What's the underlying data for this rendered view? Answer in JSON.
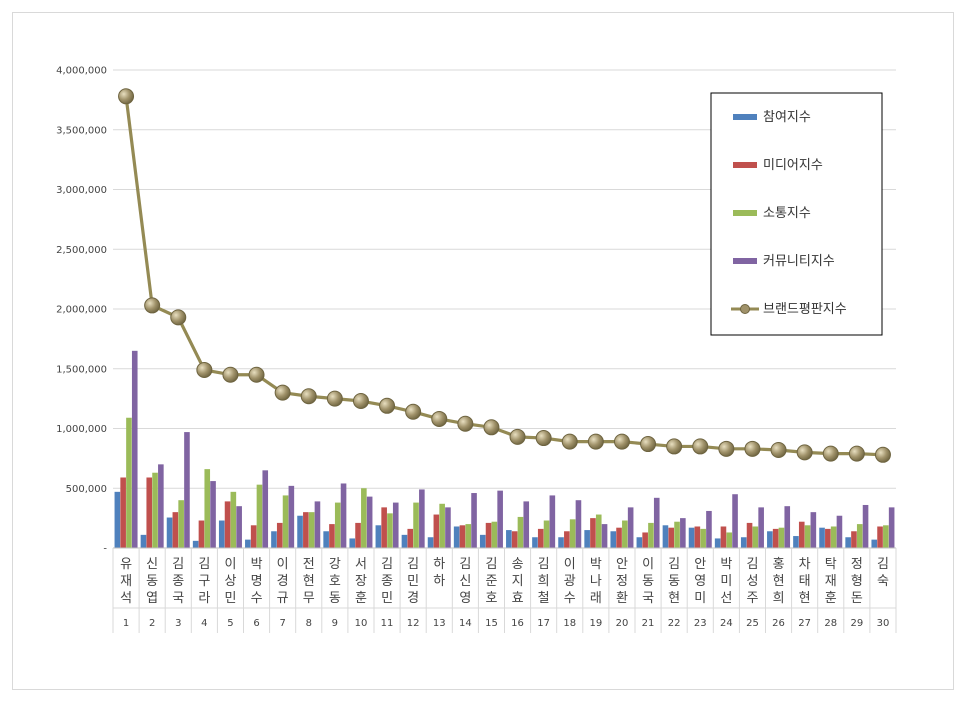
{
  "chart_data": {
    "type": "bar",
    "title": "",
    "xlabel": "",
    "ylabel": "",
    "ylim": [
      0,
      4000000
    ],
    "yticks": [
      0,
      500000,
      1000000,
      1500000,
      2000000,
      2500000,
      3000000,
      3500000,
      4000000
    ],
    "ytick_labels": [
      "-",
      "500,000",
      "1,000,000",
      "1,500,000",
      "2,000,000",
      "2,500,000",
      "3,000,000",
      "3,500,000",
      "4,000,000"
    ],
    "grid": true,
    "legend_position": "top-right",
    "categories": [
      "유재석",
      "신동엽",
      "김종국",
      "김구라",
      "이상민",
      "박명수",
      "이경규",
      "전현무",
      "강호동",
      "서장훈",
      "김종민",
      "김민경",
      "하하",
      "김신영",
      "김준호",
      "송지효",
      "김희철",
      "이광수",
      "박나래",
      "안정환",
      "이동국",
      "김동현",
      "안영미",
      "박미선",
      "김성주",
      "홍현희",
      "차태현",
      "탁재훈",
      "정형돈",
      "김숙"
    ],
    "ranks": [
      "1",
      "2",
      "3",
      "4",
      "5",
      "6",
      "7",
      "8",
      "9",
      "10",
      "11",
      "12",
      "13",
      "14",
      "15",
      "16",
      "17",
      "18",
      "19",
      "20",
      "21",
      "22",
      "23",
      "24",
      "25",
      "26",
      "27",
      "28",
      "29",
      "30"
    ],
    "series": [
      {
        "name": "참여지수",
        "kind": "bar",
        "color": "#4f81bd",
        "values": [
          470000,
          110000,
          255000,
          60000,
          230000,
          70000,
          140000,
          270000,
          140000,
          80000,
          190000,
          110000,
          90000,
          180000,
          110000,
          150000,
          90000,
          90000,
          150000,
          140000,
          90000,
          190000,
          170000,
          80000,
          90000,
          140000,
          100000,
          170000,
          90000,
          70000
        ]
      },
      {
        "name": "미디어지수",
        "kind": "bar",
        "color": "#c0504d",
        "values": [
          590000,
          590000,
          300000,
          230000,
          390000,
          190000,
          210000,
          300000,
          200000,
          210000,
          340000,
          160000,
          280000,
          190000,
          210000,
          140000,
          160000,
          140000,
          250000,
          170000,
          130000,
          170000,
          180000,
          180000,
          210000,
          160000,
          220000,
          160000,
          140000,
          180000
        ]
      },
      {
        "name": "소통지수",
        "kind": "bar",
        "color": "#9bbb59",
        "values": [
          1090000,
          630000,
          400000,
          660000,
          470000,
          530000,
          440000,
          300000,
          380000,
          500000,
          290000,
          380000,
          370000,
          200000,
          220000,
          260000,
          230000,
          240000,
          280000,
          230000,
          210000,
          220000,
          160000,
          130000,
          180000,
          170000,
          190000,
          180000,
          200000,
          190000
        ]
      },
      {
        "name": "커뮤니티지수",
        "kind": "bar",
        "color": "#8064a2",
        "values": [
          1650000,
          700000,
          970000,
          560000,
          350000,
          650000,
          520000,
          390000,
          540000,
          430000,
          380000,
          490000,
          340000,
          460000,
          480000,
          390000,
          440000,
          400000,
          200000,
          340000,
          420000,
          250000,
          310000,
          450000,
          340000,
          350000,
          300000,
          270000,
          360000,
          340000
        ]
      },
      {
        "name": "브랜드평판지수",
        "kind": "line",
        "color": "#948a54",
        "marker_color": "#a0926a",
        "values": [
          3780000,
          2030000,
          1930000,
          1490000,
          1450000,
          1450000,
          1300000,
          1270000,
          1250000,
          1230000,
          1190000,
          1140000,
          1080000,
          1040000,
          1010000,
          930000,
          920000,
          890000,
          890000,
          890000,
          870000,
          850000,
          850000,
          830000,
          830000,
          820000,
          800000,
          790000,
          790000,
          780000
        ]
      }
    ]
  }
}
